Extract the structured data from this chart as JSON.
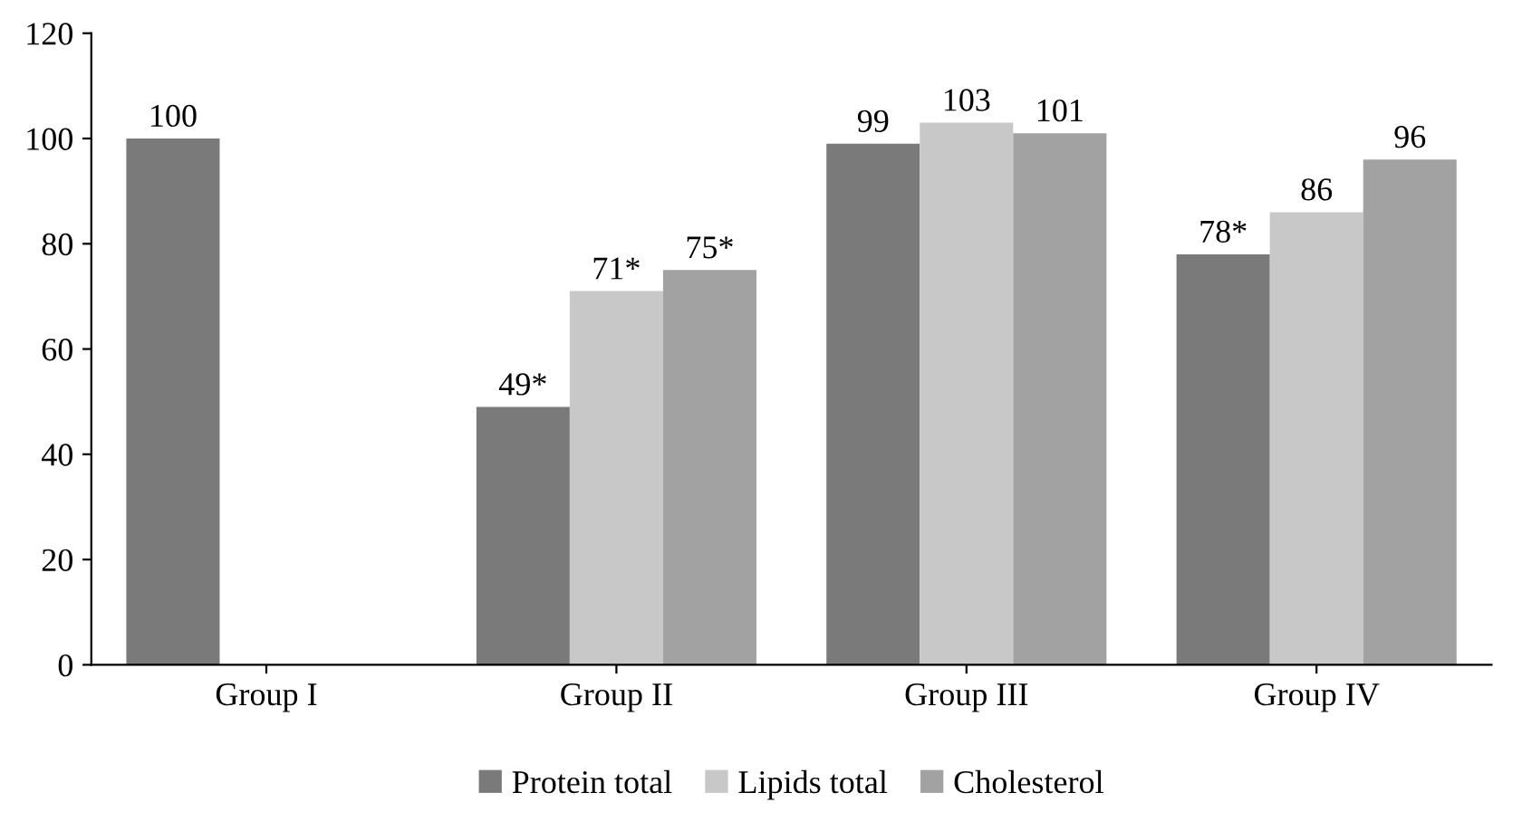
{
  "chart_data": {
    "type": "bar",
    "categories": [
      "Group I",
      "Group II",
      "Group III",
      "Group IV"
    ],
    "series": [
      {
        "name": "Protein total",
        "color": "#7a7a7a",
        "values": [
          100,
          49,
          99,
          78
        ],
        "value_labels": [
          "100",
          "49*",
          "99",
          "78*"
        ]
      },
      {
        "name": "Lipids total",
        "color": "#c8c8c8",
        "values": [
          null,
          71,
          103,
          86
        ],
        "value_labels": [
          null,
          "71*",
          "103",
          "86"
        ]
      },
      {
        "name": "Cholesterol",
        "color": "#a2a2a2",
        "values": [
          null,
          75,
          101,
          96
        ],
        "value_labels": [
          null,
          "75*",
          "101",
          "96"
        ]
      }
    ],
    "ylim": [
      0,
      120
    ],
    "yticks": [
      0,
      20,
      40,
      60,
      80,
      100,
      120
    ],
    "grid": false,
    "legend": "bottom"
  }
}
